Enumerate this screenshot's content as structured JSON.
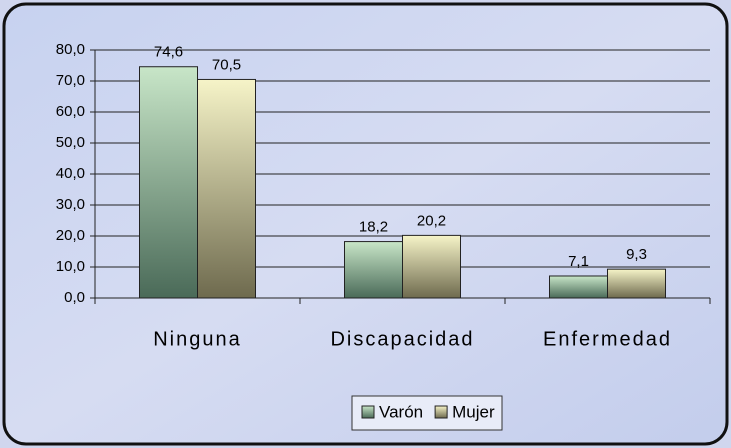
{
  "chart_data": {
    "type": "bar",
    "categories": [
      "Ninguna",
      "Discapacidad",
      "Enfermedad"
    ],
    "series": [
      {
        "name": "Varón",
        "color": "#c8e6c8",
        "values": [
          74.6,
          18.2,
          7.1
        ],
        "value_labels": [
          "74,6",
          "18,2",
          "7,1"
        ]
      },
      {
        "name": "Mujer",
        "color": "#f6f4c8",
        "values": [
          70.5,
          20.2,
          9.3
        ],
        "value_labels": [
          "70,5",
          "20,2",
          "9,3"
        ]
      }
    ],
    "ylim": [
      0,
      80
    ],
    "yticks": [
      {
        "value": 0,
        "label": "0,0"
      },
      {
        "value": 10,
        "label": "10,0"
      },
      {
        "value": 20,
        "label": "20,0"
      },
      {
        "value": 30,
        "label": "30,0"
      },
      {
        "value": 40,
        "label": "40,0"
      },
      {
        "value": 50,
        "label": "50,0"
      },
      {
        "value": 60,
        "label": "60,0"
      },
      {
        "value": 70,
        "label": "70,0"
      },
      {
        "value": 80,
        "label": "80,0"
      }
    ],
    "grid": true,
    "legend": "bottom"
  }
}
